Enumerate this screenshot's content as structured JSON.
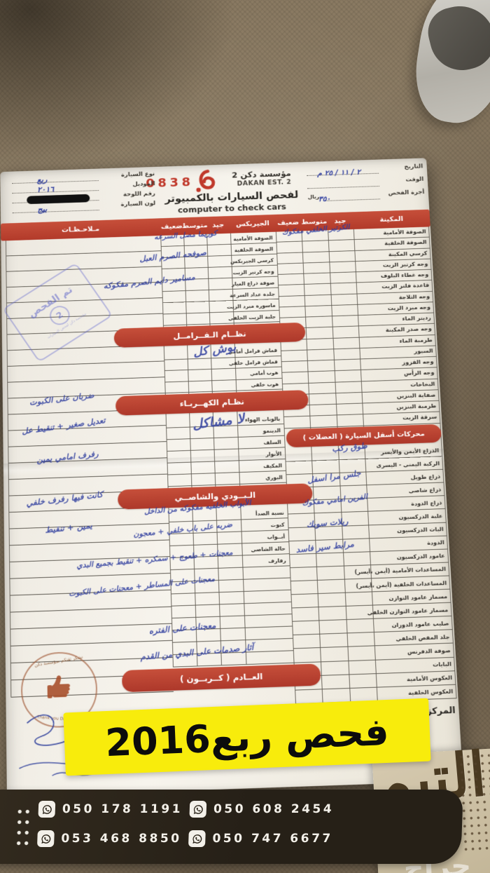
{
  "page": {
    "banner_text": "فحص ربع2016",
    "watermark": "حراج",
    "brand_calligraphy": "التيم",
    "phones": [
      "050 178 1191",
      "050 608 2454",
      "053 468 8850",
      "050 747 6677"
    ]
  },
  "colors": {
    "accent_red": "#bf4434",
    "banner_yellow": "#f8ec0c",
    "ink_blue": "#2e3d9e",
    "bar_dark": "#262017",
    "beige_panel": "#ccc0a4"
  },
  "form": {
    "serial": "0838",
    "org_name_ar": "مؤسسة دكن 2",
    "org_name_en": "DAKAN EST. 2",
    "service_ar": "لفحص السيارات بالكمبيوتر",
    "service_en": "computer to check cars",
    "currency": "ريال",
    "fields_left": [
      {
        "label": "نوع السيارة",
        "value": "ربع",
        "redacted": false
      },
      {
        "label": "الموديل",
        "value": "٢٠١٦",
        "redacted": false
      },
      {
        "label": "رقم اللوحة",
        "value": "",
        "redacted": true
      },
      {
        "label": "لون السيارة",
        "value": "بيج",
        "redacted": false
      }
    ],
    "fields_right": [
      {
        "label": "التاريخ",
        "value": "٢ / ١١ / ٢٥ م",
        "suffix": ""
      },
      {
        "label": "الوقت",
        "value": "",
        "suffix": ""
      },
      {
        "label": "أجرة الفحص",
        "value": "٣٥٠",
        "suffix": "ريال"
      }
    ],
    "header_cols": [
      "المكينة",
      "جيد",
      "متوسط",
      "ضعيف",
      "الجيربكس",
      "جيد",
      "متوسط",
      "ضعيف",
      "مـلاحـظـات"
    ],
    "engine_items": [
      "الصوفة الأمامية",
      "الصوفة الخلفية",
      "كرسي المكينة",
      "وجه كرتير الزيت",
      "وجه غطاء البلوف",
      "قاعدة فلتر الزيت",
      "وجه الثلاجة",
      "وجه مبرد الزيت",
      "رديتر الماء",
      "وجه صدر المكينة",
      "طرمبة الماء",
      "السيور",
      "وجه القزوز",
      "وجه الرأس",
      "البخاخات",
      "صفاية البنزين",
      "طرمبة البنزين",
      "سرقة الزيت"
    ],
    "lower_section_title": "محركات أسفل السيارة ( العضلات )",
    "lower_items": [
      "الذراع الأيمن والأيسر",
      "الركبة اليمني - اليسرى",
      "ذراع طويل",
      "ذراع شاصي",
      "ذراع الدودة",
      "علبة الدركسيون",
      "البات الدركسيون",
      "الدودة",
      "عامود الدركسيون",
      "المساعدات الأمامية (أيمن ،أيسر)",
      "المساعدات الخلفية (أيمن ،أيسر)",
      "مسمار عامود التوازن",
      "مسمار عامود التوازن الخلفي",
      "صليب عامود الدوران",
      "جلد المقص الخلفي",
      "صوفة الدفرنس",
      "البايات",
      "العكوس الأمامية",
      "العكوس الخلفية"
    ],
    "gearbox_items": [
      "الصوفة الأمامية",
      "الصوفة الخلفية",
      "كرسي الجيربكس",
      "وجه كرتير الزيت",
      "صوفة ذراع الغيار",
      "جلدة عداد السرعة",
      "ماسورة مبرد الزيت",
      "جلبة الزيت الخلفي"
    ],
    "brakes_title": "نظــام الـفــرامــل",
    "brake_items": [
      "قماش فرامل أمامي",
      "قماش فرامل خلفي",
      "هوب أمامي",
      "هوب خلفي"
    ],
    "electric_title": "نظـام الكهــربـاء",
    "electric_items": [
      "بالونات الهواء",
      "الدينمو",
      "السلف",
      "الأنوار",
      "المكيف",
      "البوري"
    ],
    "body_title": "الـبــودي والشاصــي",
    "body_items": [
      "نسبة الصدأ",
      "كبوت",
      "أبــواب",
      "حالة الشاصي",
      "رفارف"
    ],
    "exhaust_title": "العــادم ( كــربــون )",
    "disclaimer": "المركز غير مسؤول عن",
    "stamp_inspected": "تم الفحص",
    "stamp_inspected_num": "2",
    "stamp_sub": "مؤسسة دكن لفحص السيارات",
    "stamp_thanks_ar": "نشكر ثقتكم بمؤسسة دكن",
    "stamp_thanks_en": "Thank you Dakan Est.",
    "handwriting": [
      "الكرتير الخلفي مفكوك",
      "كوريما مصل السرعه",
      "صوفحه الصرم العبل",
      "مسامير دايم الصرم مفكوكه",
      "بوش كل",
      "لا مشاكل",
      "طوق ركب",
      "جلس مرا اسفل",
      "الفرين امامي مفكوك",
      "ريلات سوبك",
      "مرابط سير فاسد",
      "الأبواب الخلفيه مفكوكه من الداخل",
      "ضربه على باب خلفي + معجون",
      "معجنات + طعوج + سمكره + تنقيط بجميع البدي",
      "معجنات على المساطر + معجنات على الكبوت",
      "معجنات على الفتره",
      "آثار صدمات على البدي من القدم",
      "ضربان على الكبوت",
      "تعديل صغير + تنقيط عل",
      "رفرف امامي يمين",
      "كانت فيها رفرف خلفي",
      "يمين + تنقيط"
    ]
  }
}
